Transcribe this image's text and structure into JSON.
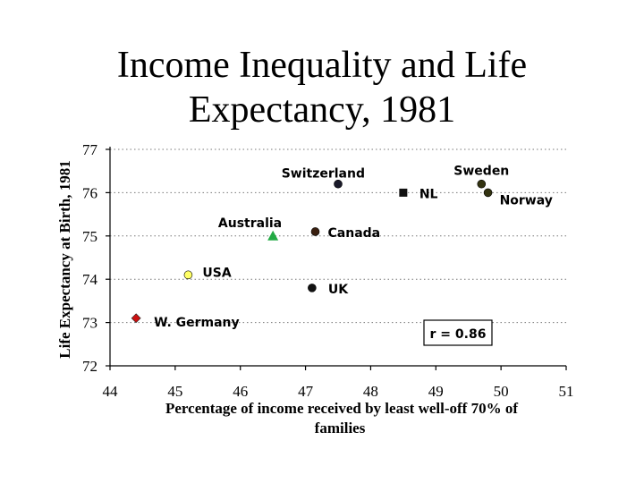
{
  "chart_data": {
    "type": "scatter",
    "title": [
      "Income Inequality and Life",
      "Expectancy, 1981"
    ],
    "xlabel": [
      "Percentage of income received by least well-off 70% of",
      "families"
    ],
    "ylabel": "Life Expectancy at Birth, 1981",
    "xlim": [
      44,
      51
    ],
    "ylim": [
      72,
      77
    ],
    "x_ticks": [
      44,
      45,
      46,
      47,
      48,
      49,
      50,
      51
    ],
    "y_ticks": [
      72,
      73,
      74,
      75,
      76,
      77
    ],
    "grid": "horizontal dotted",
    "annotation": "r = 0.86",
    "points": [
      {
        "label": "W. Germany",
        "x": 44.4,
        "y": 73.1,
        "marker": "diamond",
        "color": "#cc1111"
      },
      {
        "label": "USA",
        "x": 45.2,
        "y": 74.1,
        "marker": "circle",
        "color": "#ffff66"
      },
      {
        "label": "Australia",
        "x": 46.5,
        "y": 75.0,
        "marker": "triangle",
        "color": "#22aa44"
      },
      {
        "label": "UK",
        "x": 47.1,
        "y": 73.8,
        "marker": "circle",
        "color": "#111111"
      },
      {
        "label": "Canada",
        "x": 47.15,
        "y": 75.1,
        "marker": "circle",
        "color": "#3a1f10"
      },
      {
        "label": "Switzerland",
        "x": 47.5,
        "y": 76.2,
        "marker": "circle",
        "color": "#1a1a2a"
      },
      {
        "label": "NL",
        "x": 48.5,
        "y": 76.0,
        "marker": "square",
        "color": "#111111"
      },
      {
        "label": "Sweden",
        "x": 49.7,
        "y": 76.2,
        "marker": "circle",
        "color": "#333311"
      },
      {
        "label": "Norway",
        "x": 49.8,
        "y": 76.0,
        "marker": "circle",
        "color": "#333311"
      }
    ]
  }
}
